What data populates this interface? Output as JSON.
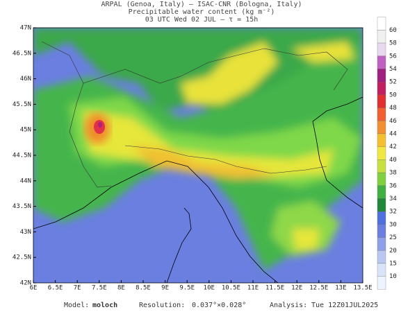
{
  "header": {
    "line1": "ARPAL (Genoa, Italy)  —  ISAC-CNR (Bologna, Italy)",
    "line2": "Precipitable water content (kg m⁻²)",
    "line3": "03 UTC Wed 02 JUL  —  τ = 15h"
  },
  "map": {
    "lat_labels": [
      "47N",
      "46.5N",
      "46N",
      "45.5N",
      "45N",
      "44.5N",
      "44N",
      "43.5N",
      "43N",
      "42.5N",
      "42N"
    ],
    "lon_labels": [
      "6E",
      "6.5E",
      "7E",
      "7.5E",
      "8E",
      "8.5E",
      "9E",
      "9.5E",
      "10E",
      "10.5E",
      "11E",
      "11.5E",
      "12E",
      "12.5E",
      "13E",
      "13.5E"
    ]
  },
  "colorbar": {
    "labels": [
      "60",
      "58",
      "56",
      "54",
      "52",
      "50",
      "48",
      "46",
      "44",
      "42",
      "40",
      "38",
      "36",
      "34",
      "32",
      "30",
      "25",
      "20",
      "15",
      "10"
    ]
  },
  "footer": {
    "model_label": "Model:",
    "model": "moloch",
    "resolution_label": "Resolution:",
    "resolution": "0.037°×0.028°",
    "analysis_label": "Analysis:",
    "analysis": "Tue 12Z01JUL2025"
  }
}
